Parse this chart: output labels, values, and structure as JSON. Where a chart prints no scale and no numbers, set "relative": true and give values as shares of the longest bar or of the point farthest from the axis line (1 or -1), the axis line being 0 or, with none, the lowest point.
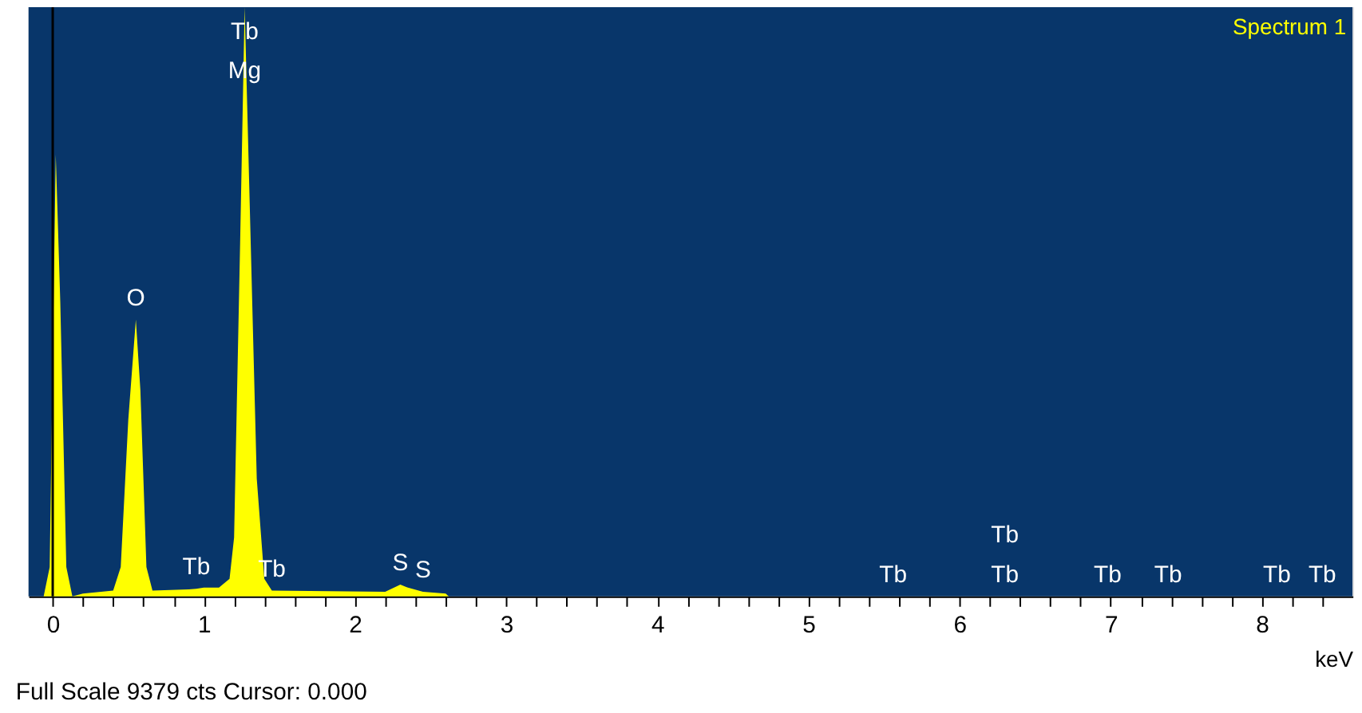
{
  "chart_data": {
    "type": "area",
    "relative": true,
    "title": "Spectrum 1",
    "xlabel": "keV",
    "color": "#ffff00",
    "x": [
      -0.06,
      -0.02,
      0.0,
      0.02,
      0.05,
      0.09,
      0.13,
      0.2,
      0.4,
      0.45,
      0.5,
      0.55,
      0.58,
      0.62,
      0.66,
      0.9,
      0.95,
      1.0,
      1.1,
      1.17,
      1.2,
      1.24,
      1.27,
      1.3,
      1.35,
      1.4,
      1.45,
      2.2,
      2.3,
      2.35,
      2.45,
      2.6,
      2.62,
      5.56,
      6.3,
      6.98,
      7.38,
      8.1,
      8.4
    ],
    "values": [
      0,
      0.05,
      0.4,
      0.75,
      0.5,
      0.05,
      0,
      0.005,
      0.01,
      0.05,
      0.3,
      0.47,
      0.35,
      0.05,
      0.01,
      0.012,
      0.013,
      0.015,
      0.015,
      0.03,
      0.1,
      0.6,
      1.0,
      0.7,
      0.2,
      0.03,
      0.01,
      0.008,
      0.02,
      0.015,
      0.008,
      0.005,
      0,
      0,
      0,
      0,
      0,
      0,
      0
    ],
    "xlim": [
      -0.16,
      8.6
    ],
    "xticks": [
      0,
      {
        "value": 0.2,
        "label": null
      },
      {
        "value": 0.4,
        "label": null
      },
      {
        "value": 0.6,
        "label": null
      },
      {
        "value": 0.8,
        "label": null
      },
      1,
      {
        "value": 1.2,
        "label": null
      },
      {
        "value": 1.4,
        "label": null
      },
      {
        "value": 1.6,
        "label": null
      },
      {
        "value": 1.8,
        "label": null
      },
      2,
      {
        "value": 2.2,
        "label": null
      },
      {
        "value": 2.4,
        "label": null
      },
      {
        "value": 2.6,
        "label": null
      },
      {
        "value": 2.8,
        "label": null
      },
      3,
      {
        "value": 3.2,
        "label": null
      },
      {
        "value": 3.4,
        "label": null
      },
      {
        "value": 3.6,
        "label": null
      },
      {
        "value": 3.8,
        "label": null
      },
      4,
      {
        "value": 4.2,
        "label": null
      },
      {
        "value": 4.4,
        "label": null
      },
      {
        "value": 4.6,
        "label": null
      },
      {
        "value": 4.8,
        "label": null
      },
      5,
      {
        "value": 5.2,
        "label": null
      },
      {
        "value": 5.4,
        "label": null
      },
      {
        "value": 5.6,
        "label": null
      },
      {
        "value": 5.8,
        "label": null
      },
      6,
      {
        "value": 6.2,
        "label": null
      },
      {
        "value": 6.4,
        "label": null
      },
      {
        "value": 6.6,
        "label": null
      },
      {
        "value": 6.8,
        "label": null
      },
      7,
      {
        "value": 7.2,
        "label": null
      },
      {
        "value": 7.4,
        "label": null
      },
      {
        "value": 7.6,
        "label": null
      },
      {
        "value": 7.8,
        "label": null
      },
      8,
      {
        "value": 8.2,
        "label": null
      },
      {
        "value": 8.4,
        "label": null
      }
    ],
    "ref_lines": [
      {
        "axis": "x",
        "value": 0,
        "color": "#000000"
      }
    ],
    "annotations": [
      {
        "text": "Tb",
        "x": 1.27,
        "y": 1.0
      },
      {
        "text": "Mg",
        "x": 1.27,
        "y": 1.0
      },
      {
        "text": "O",
        "x": 0.55,
        "y": 0.47
      },
      {
        "text": "Tb",
        "x": 0.95,
        "y": 0.013
      },
      {
        "text": "Tb",
        "x": 1.45,
        "y": 0.01
      },
      {
        "text": "S",
        "x": 2.3,
        "y": 0.02
      },
      {
        "text": "S",
        "x": 2.45,
        "y": 0.008
      },
      {
        "text": "Tb",
        "x": 5.56,
        "y": 0
      },
      {
        "text": "Tb",
        "x": 6.3,
        "y": 0
      },
      {
        "text": "Tb",
        "x": 6.3,
        "y": 0
      },
      {
        "text": "Tb",
        "x": 6.98,
        "y": 0
      },
      {
        "text": "Tb",
        "x": 7.38,
        "y": 0
      },
      {
        "text": "Tb",
        "x": 8.1,
        "y": 0
      },
      {
        "text": "Tb",
        "x": 8.4,
        "y": 0
      },
      "Full Scale 9379 cts Cursor: 0.000"
    ]
  }
}
